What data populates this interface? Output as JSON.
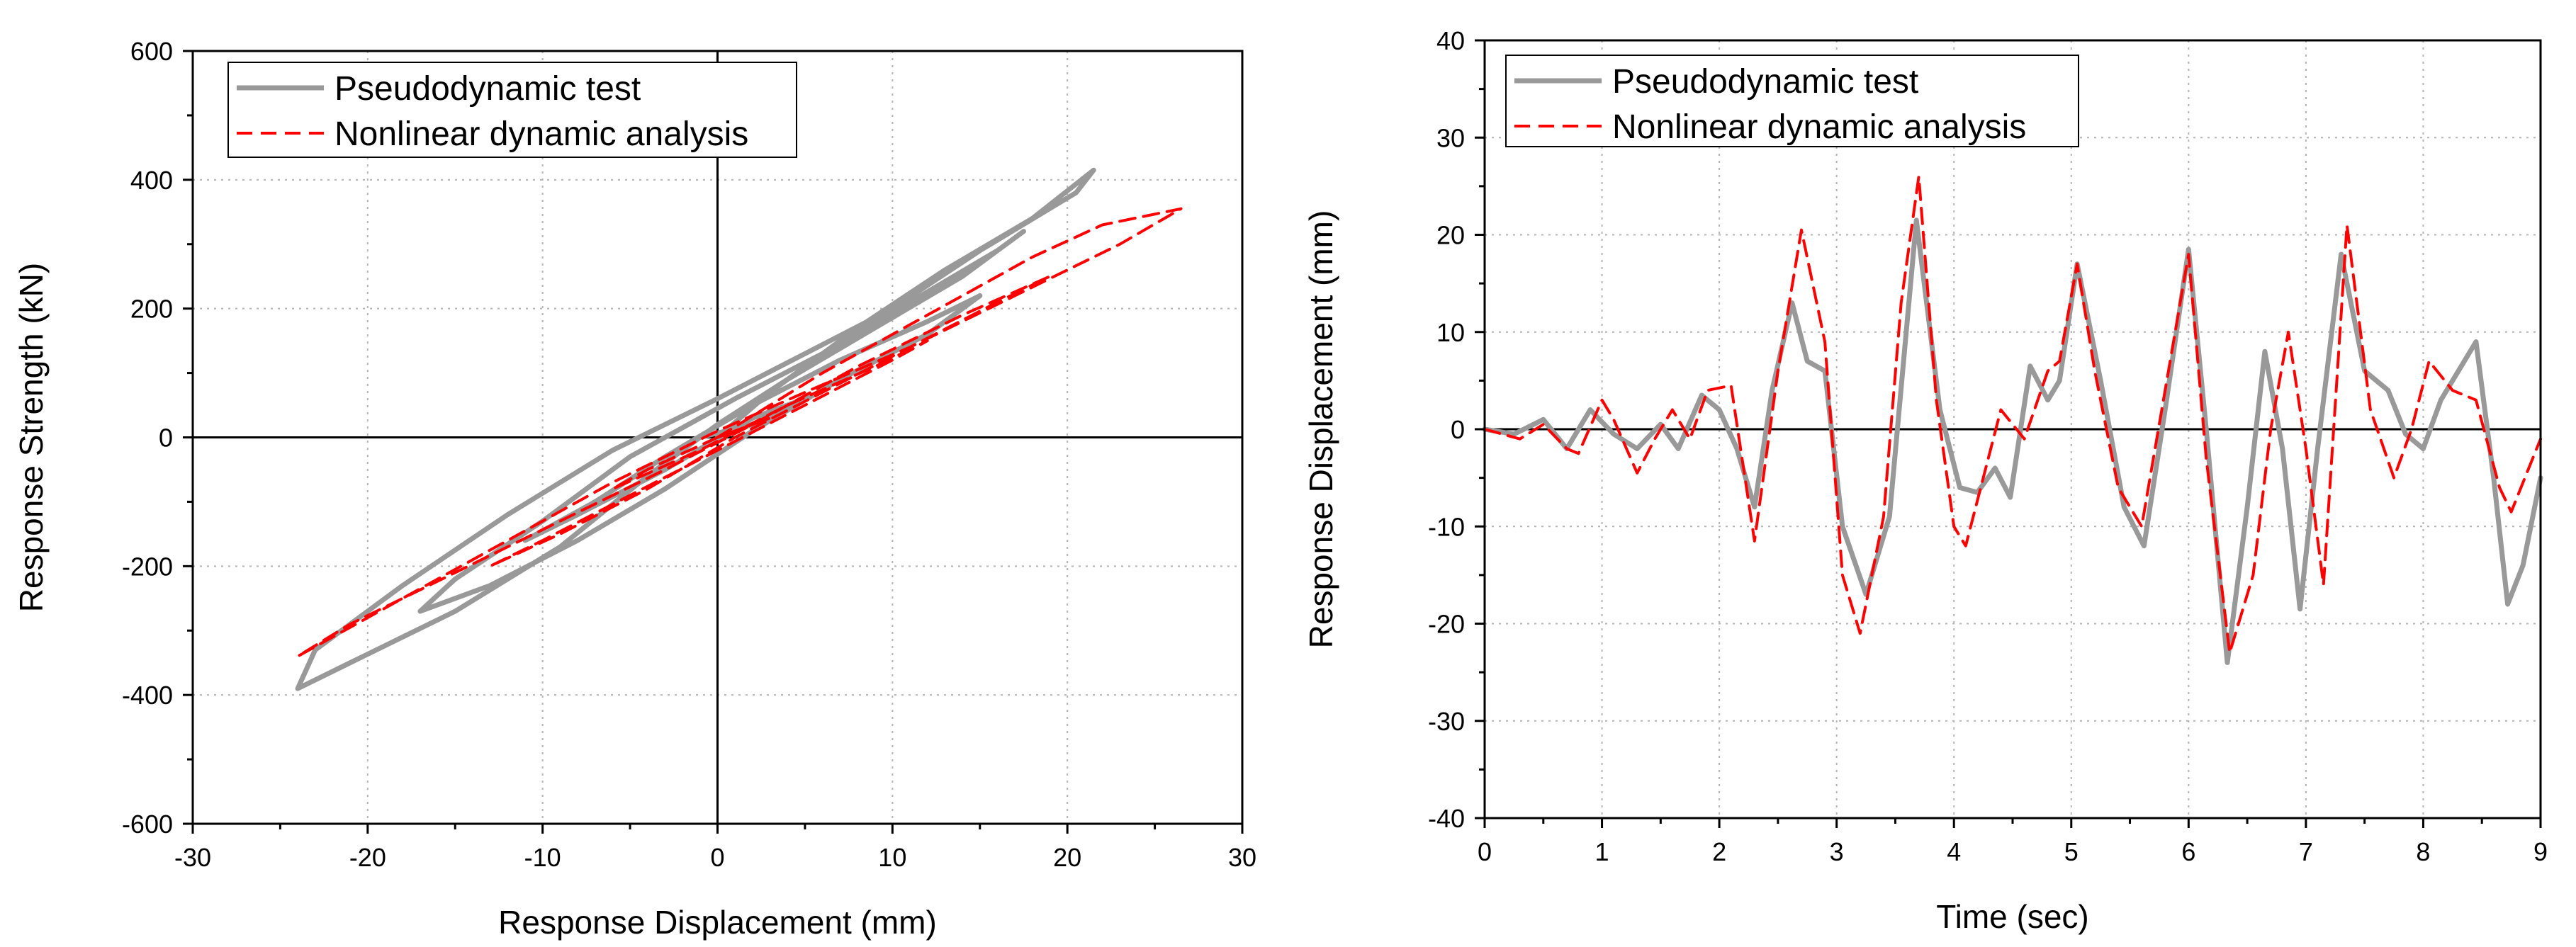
{
  "colors": {
    "test": "#999999",
    "analysis": "#ff0000",
    "axis": "#000000",
    "grid": "#b4b4b4"
  },
  "chart_data": [
    {
      "type": "line",
      "xlabel": "Response Displacement (mm)",
      "ylabel": "Response Strength (kN)",
      "xlim": [
        -30,
        30
      ],
      "ylim": [
        -600,
        600
      ],
      "xticks": [
        -30,
        -20,
        -10,
        0,
        10,
        20,
        30
      ],
      "yticks": [
        -600,
        -400,
        -200,
        0,
        200,
        400,
        600
      ],
      "grid": true,
      "legend_position": "top-left",
      "series": [
        {
          "name": "Pseudodynamic test",
          "style": "solid",
          "x": [
            0,
            3,
            8,
            13,
            18,
            21.5,
            20.5,
            15,
            10,
            5,
            0,
            -6,
            -12,
            -18,
            -23,
            -24,
            -21,
            -15,
            -9,
            -4,
            0,
            4,
            9,
            14,
            17.5,
            16,
            11,
            6,
            1,
            -5,
            -10,
            -15,
            -17,
            -13,
            -8,
            -3,
            2,
            7,
            12,
            15,
            12,
            7,
            2,
            -3,
            -7,
            -11,
            -8,
            -3,
            2,
            5,
            2,
            -1
          ],
          "y": [
            0,
            70,
            170,
            260,
            340,
            415,
            380,
            290,
            200,
            130,
            60,
            -20,
            -120,
            -230,
            -330,
            -390,
            -350,
            -270,
            -170,
            -60,
            20,
            90,
            170,
            250,
            320,
            290,
            210,
            130,
            60,
            -30,
            -130,
            -220,
            -270,
            -230,
            -160,
            -80,
            10,
            90,
            160,
            220,
            180,
            120,
            50,
            -30,
            -100,
            -160,
            -120,
            -50,
            30,
            60,
            20,
            0
          ]
        },
        {
          "name": "Nonlinear dynamic analysis",
          "style": "dashed",
          "x": [
            0,
            6,
            12,
            18,
            22,
            26.5,
            23,
            17,
            11,
            5,
            0,
            -6,
            -12,
            -18,
            -24,
            -21,
            -15,
            -9,
            -3,
            2,
            8,
            14,
            19,
            16,
            11,
            6,
            1,
            -4,
            -9,
            -13,
            -10,
            -5,
            0,
            5,
            10,
            12,
            9,
            4,
            -1,
            -6,
            -4,
            0,
            3,
            0
          ],
          "y": [
            0,
            100,
            190,
            280,
            330,
            355,
            300,
            220,
            140,
            70,
            10,
            -70,
            -160,
            -250,
            -340,
            -290,
            -210,
            -130,
            -50,
            20,
            110,
            190,
            250,
            210,
            140,
            70,
            0,
            -80,
            -150,
            -200,
            -160,
            -90,
            -20,
            50,
            120,
            150,
            110,
            50,
            -20,
            -80,
            -50,
            0,
            30,
            0
          ]
        }
      ]
    },
    {
      "type": "line",
      "xlabel": "Time (sec)",
      "ylabel": "Response Displacement (mm)",
      "xlim": [
        0,
        9
      ],
      "ylim": [
        -40,
        40
      ],
      "xticks": [
        0,
        1,
        2,
        3,
        4,
        5,
        6,
        7,
        8,
        9
      ],
      "yticks": [
        -40,
        -30,
        -20,
        -10,
        0,
        10,
        20,
        30,
        40
      ],
      "grid": true,
      "legend_position": "top-left",
      "series": [
        {
          "name": "Pseudodynamic test",
          "style": "solid",
          "x": [
            0,
            0.25,
            0.5,
            0.7,
            0.9,
            1.1,
            1.3,
            1.5,
            1.65,
            1.85,
            2.0,
            2.15,
            2.3,
            2.45,
            2.62,
            2.75,
            2.9,
            3.05,
            3.25,
            3.45,
            3.68,
            3.88,
            4.05,
            4.2,
            4.35,
            4.48,
            4.65,
            4.8,
            4.9,
            5.05,
            5.25,
            5.45,
            5.62,
            5.8,
            6.0,
            6.15,
            6.33,
            6.5,
            6.65,
            6.8,
            6.95,
            7.1,
            7.3,
            7.5,
            7.7,
            7.85,
            8.0,
            8.15,
            8.3,
            8.45,
            8.6,
            8.72,
            8.85,
            9.0
          ],
          "y": [
            0,
            -0.5,
            1,
            -2,
            2,
            -0.5,
            -2,
            0.5,
            -2,
            3.5,
            2,
            -2,
            -8,
            4,
            13,
            7,
            6,
            -10,
            -17,
            -9,
            21.5,
            2,
            -6,
            -6.5,
            -4,
            -7,
            6.5,
            3,
            5,
            17,
            5,
            -8,
            -12,
            2,
            18.5,
            0,
            -24,
            -8,
            8,
            -2,
            -18.5,
            -2,
            18,
            6,
            4,
            -0.5,
            -2,
            3,
            6,
            9,
            -5,
            -18,
            -14,
            -5
          ]
        },
        {
          "name": "Nonlinear dynamic analysis",
          "style": "dashed",
          "x": [
            0,
            0.3,
            0.5,
            0.7,
            0.8,
            1.0,
            1.1,
            1.3,
            1.45,
            1.6,
            1.75,
            1.9,
            2.1,
            2.3,
            2.5,
            2.7,
            2.9,
            3.05,
            3.2,
            3.4,
            3.55,
            3.7,
            3.85,
            4.0,
            4.1,
            4.25,
            4.4,
            4.6,
            4.8,
            4.9,
            5.05,
            5.2,
            5.4,
            5.6,
            5.8,
            6.0,
            6.15,
            6.35,
            6.55,
            6.7,
            6.85,
            7.0,
            7.15,
            7.35,
            7.55,
            7.75,
            7.9,
            8.05,
            8.25,
            8.45,
            8.65,
            8.75,
            8.9,
            9.0
          ],
          "y": [
            0,
            -1,
            0.5,
            -2,
            -2.5,
            3,
            1,
            -4.5,
            -1,
            2,
            -1,
            4,
            4.5,
            -11.5,
            6,
            20.5,
            9,
            -15,
            -21,
            -9,
            13,
            26,
            3,
            -10,
            -12,
            -5,
            2,
            -1,
            6,
            7,
            17,
            6,
            -6,
            -10,
            4,
            18,
            -3,
            -23,
            -15,
            0,
            10,
            -2,
            -16,
            21,
            2,
            -5,
            0,
            7,
            4,
            3,
            -6,
            -8.5,
            -4,
            -1
          ]
        }
      ]
    }
  ]
}
